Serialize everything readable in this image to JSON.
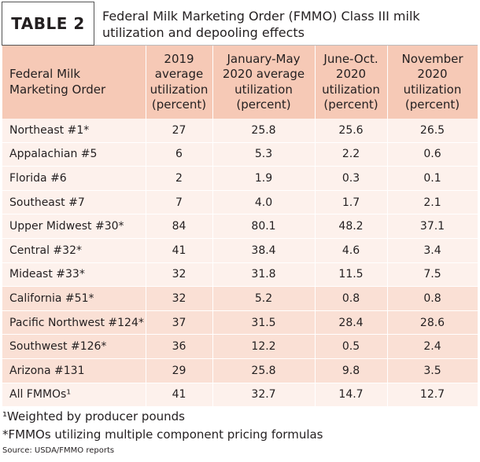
{
  "header": {
    "label": "TABLE 2",
    "title": [
      "Federal Milk Marketing Order (FMMO) Class III milk",
      "utilization and depooling effects"
    ]
  },
  "table": {
    "columns": [
      [
        "Federal Milk",
        "Marketing Order"
      ],
      [
        "2019",
        "average",
        "utilization",
        "(percent)"
      ],
      [
        "January-May",
        "2020 average",
        "utilization",
        "(percent)"
      ],
      [
        "June-Oct.",
        "2020",
        "utilization",
        "(percent)"
      ],
      [
        "November",
        "2020",
        "utilization",
        "(percent)"
      ]
    ],
    "rows": [
      [
        "Northeast #1*",
        "27",
        "25.8",
        "25.6",
        "26.5"
      ],
      [
        "Appalachian #5",
        "6",
        "5.3",
        "2.2",
        "0.6"
      ],
      [
        "Florida #6",
        "2",
        "1.9",
        "0.3",
        "0.1"
      ],
      [
        "Southeast #7",
        "7",
        "4.0",
        "1.7",
        "2.1"
      ],
      [
        "Upper Midwest #30*",
        "84",
        "80.1",
        "48.2",
        "37.1"
      ],
      [
        "Central #32*",
        "41",
        "38.4",
        "4.6",
        "3.4"
      ],
      [
        "Mideast #33*",
        "32",
        "31.8",
        "11.5",
        "7.5"
      ],
      [
        "California #51*",
        "32",
        "5.2",
        "0.8",
        "0.8"
      ],
      [
        "Pacific Northwest #124*",
        "37",
        "31.5",
        "28.4",
        "28.6"
      ],
      [
        "Southwest #126*",
        "36",
        "12.2",
        "0.5",
        "2.4"
      ],
      [
        "Arizona #131",
        "29",
        "25.8",
        "9.8",
        "3.5"
      ],
      [
        "All FMMOs¹",
        "41",
        "32.7",
        "14.7",
        "12.7"
      ]
    ]
  },
  "footnotes": [
    "¹Weighted by producer pounds",
    "*FMMOs utilizing multiple component pricing formulas"
  ],
  "source": "Source: USDA/FMMO reports"
}
